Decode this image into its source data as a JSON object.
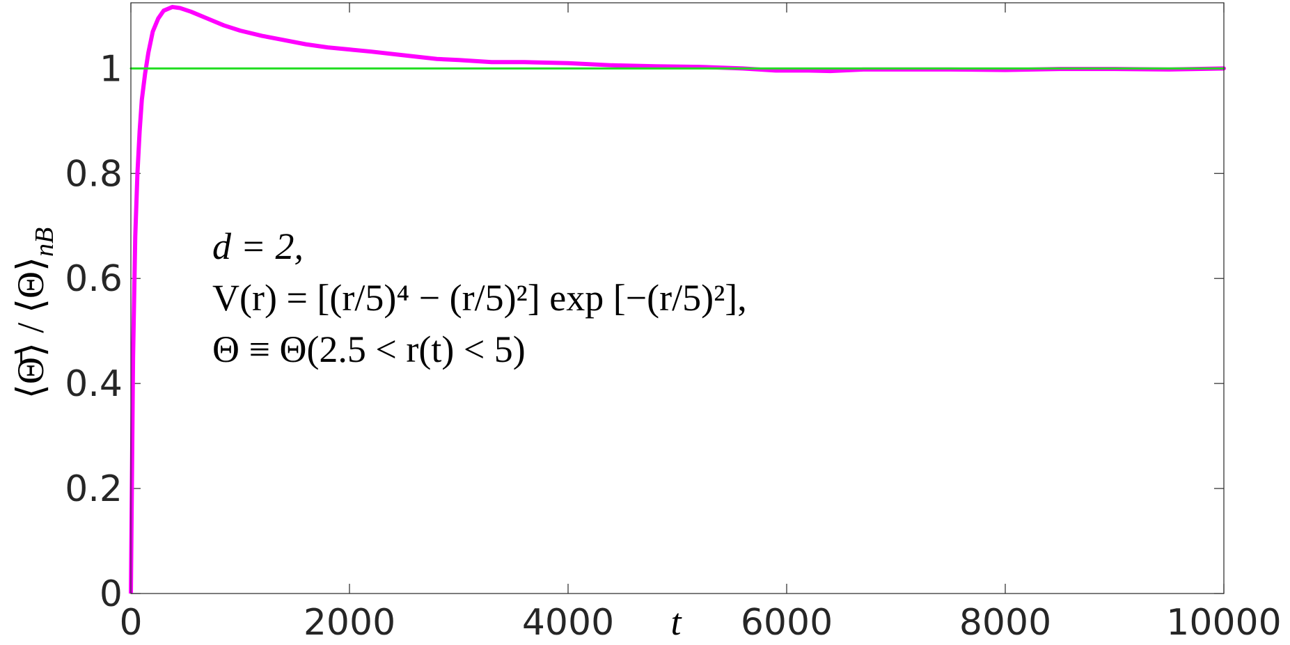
{
  "chart_data": {
    "type": "line",
    "xlabel": "t",
    "ylabel": "⟨Θ̄⟩ / ⟨Θ⟩",
    "ylabel_sub": "nB",
    "annotation": [
      "d = 2,",
      "V(r) = [(r/5)⁴ − (r/5)²] exp [−(r/5)²],",
      "Θ ≡ Θ(2.5 < r(t) < 5)"
    ],
    "xlim": [
      0,
      10000
    ],
    "ylim": [
      0,
      1.125
    ],
    "xticks": [
      0,
      2000,
      4000,
      6000,
      8000,
      10000
    ],
    "yticks": [
      0,
      0.2,
      0.4,
      0.6,
      0.8,
      1
    ],
    "series": [
      {
        "color": "#ff00ff",
        "width": 6,
        "x": [
          0,
          20,
          40,
          60,
          80,
          100,
          130,
          160,
          200,
          250,
          300,
          380,
          450,
          550,
          700,
          850,
          1000,
          1200,
          1400,
          1600,
          1800,
          2000,
          2200,
          2500,
          2800,
          3000,
          3300,
          3600,
          4000,
          4400,
          4800,
          5200,
          5600,
          5900,
          6200,
          6400,
          6700,
          7000,
          7500,
          8000,
          8500,
          9000,
          9500,
          10000
        ],
        "values": [
          0,
          0.45,
          0.68,
          0.8,
          0.88,
          0.94,
          0.99,
          1.03,
          1.07,
          1.095,
          1.11,
          1.117,
          1.115,
          1.108,
          1.095,
          1.082,
          1.072,
          1.062,
          1.054,
          1.046,
          1.04,
          1.036,
          1.032,
          1.025,
          1.018,
          1.016,
          1.012,
          1.012,
          1.01,
          1.006,
          1.004,
          1.003,
          1.0,
          0.996,
          0.996,
          0.995,
          0.998,
          0.998,
          0.998,
          0.997,
          0.999,
          0.999,
          0.998,
          1.0
        ]
      },
      {
        "color": "#22dd22",
        "width": 3,
        "x": [
          0,
          10000
        ],
        "values": [
          1,
          1
        ]
      }
    ]
  }
}
